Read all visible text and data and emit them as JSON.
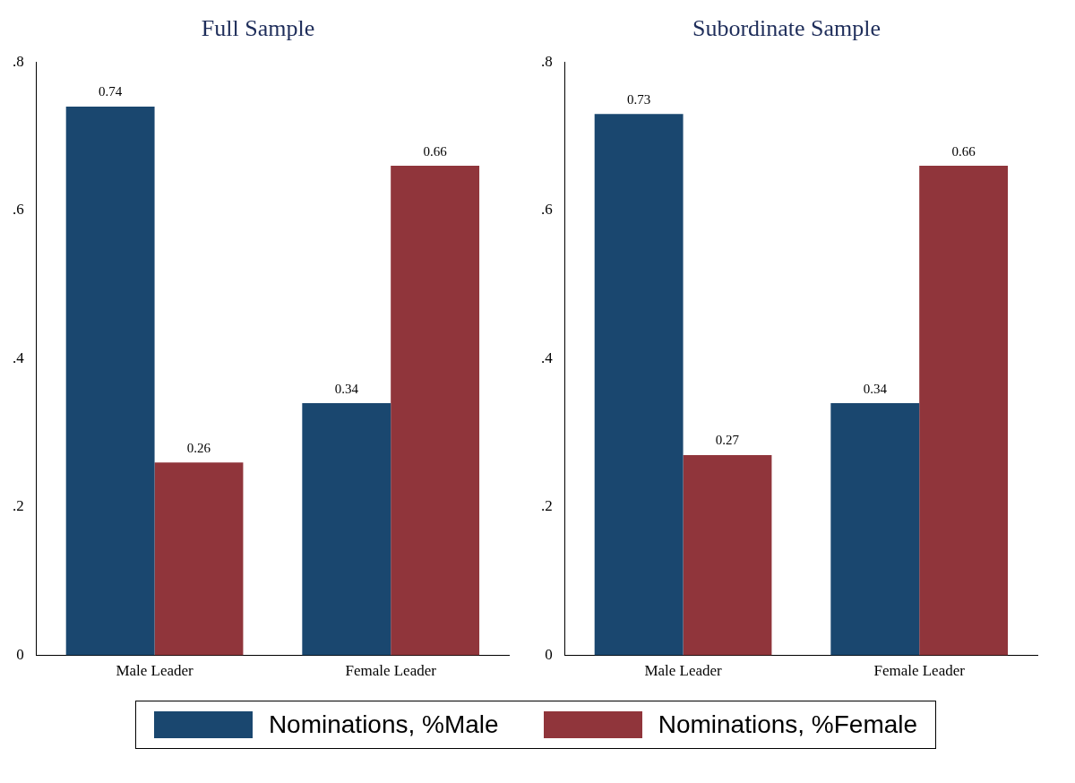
{
  "chart_data": [
    {
      "type": "bar",
      "title": "Full Sample",
      "categories": [
        "Male Leader",
        "Female Leader"
      ],
      "series": [
        {
          "name": "Nominations, %Male",
          "color": "#1a476f",
          "values": [
            0.74,
            0.34
          ]
        },
        {
          "name": "Nominations, %Female",
          "color": "#90353b",
          "values": [
            0.26,
            0.66
          ]
        }
      ],
      "ylim": [
        0,
        0.8
      ],
      "yticks": [
        {
          "value": 0,
          "label": "0"
        },
        {
          "value": 0.2,
          "label": ".2"
        },
        {
          "value": 0.4,
          "label": ".4"
        },
        {
          "value": 0.6,
          "label": ".6"
        },
        {
          "value": 0.8,
          "label": ".8"
        }
      ],
      "grid": false,
      "data_labels": true,
      "legend": "bottom"
    },
    {
      "type": "bar",
      "title": "Subordinate Sample",
      "categories": [
        "Male Leader",
        "Female Leader"
      ],
      "series": [
        {
          "color": "#1a476f",
          "values": [
            0.73,
            0.34
          ]
        },
        {
          "color": "#90353b",
          "values": [
            0.27,
            0.66
          ]
        }
      ],
      "ylim": [
        0,
        0.8
      ],
      "yticks": [
        {
          "value": 0,
          "label": "0"
        },
        {
          "value": 0.2,
          "label": ".2"
        },
        {
          "value": 0.4,
          "label": ".4"
        },
        {
          "value": 0.6,
          "label": ".6"
        },
        {
          "value": 0.8,
          "label": ".8"
        }
      ],
      "grid": false,
      "data_labels": true
    }
  ]
}
